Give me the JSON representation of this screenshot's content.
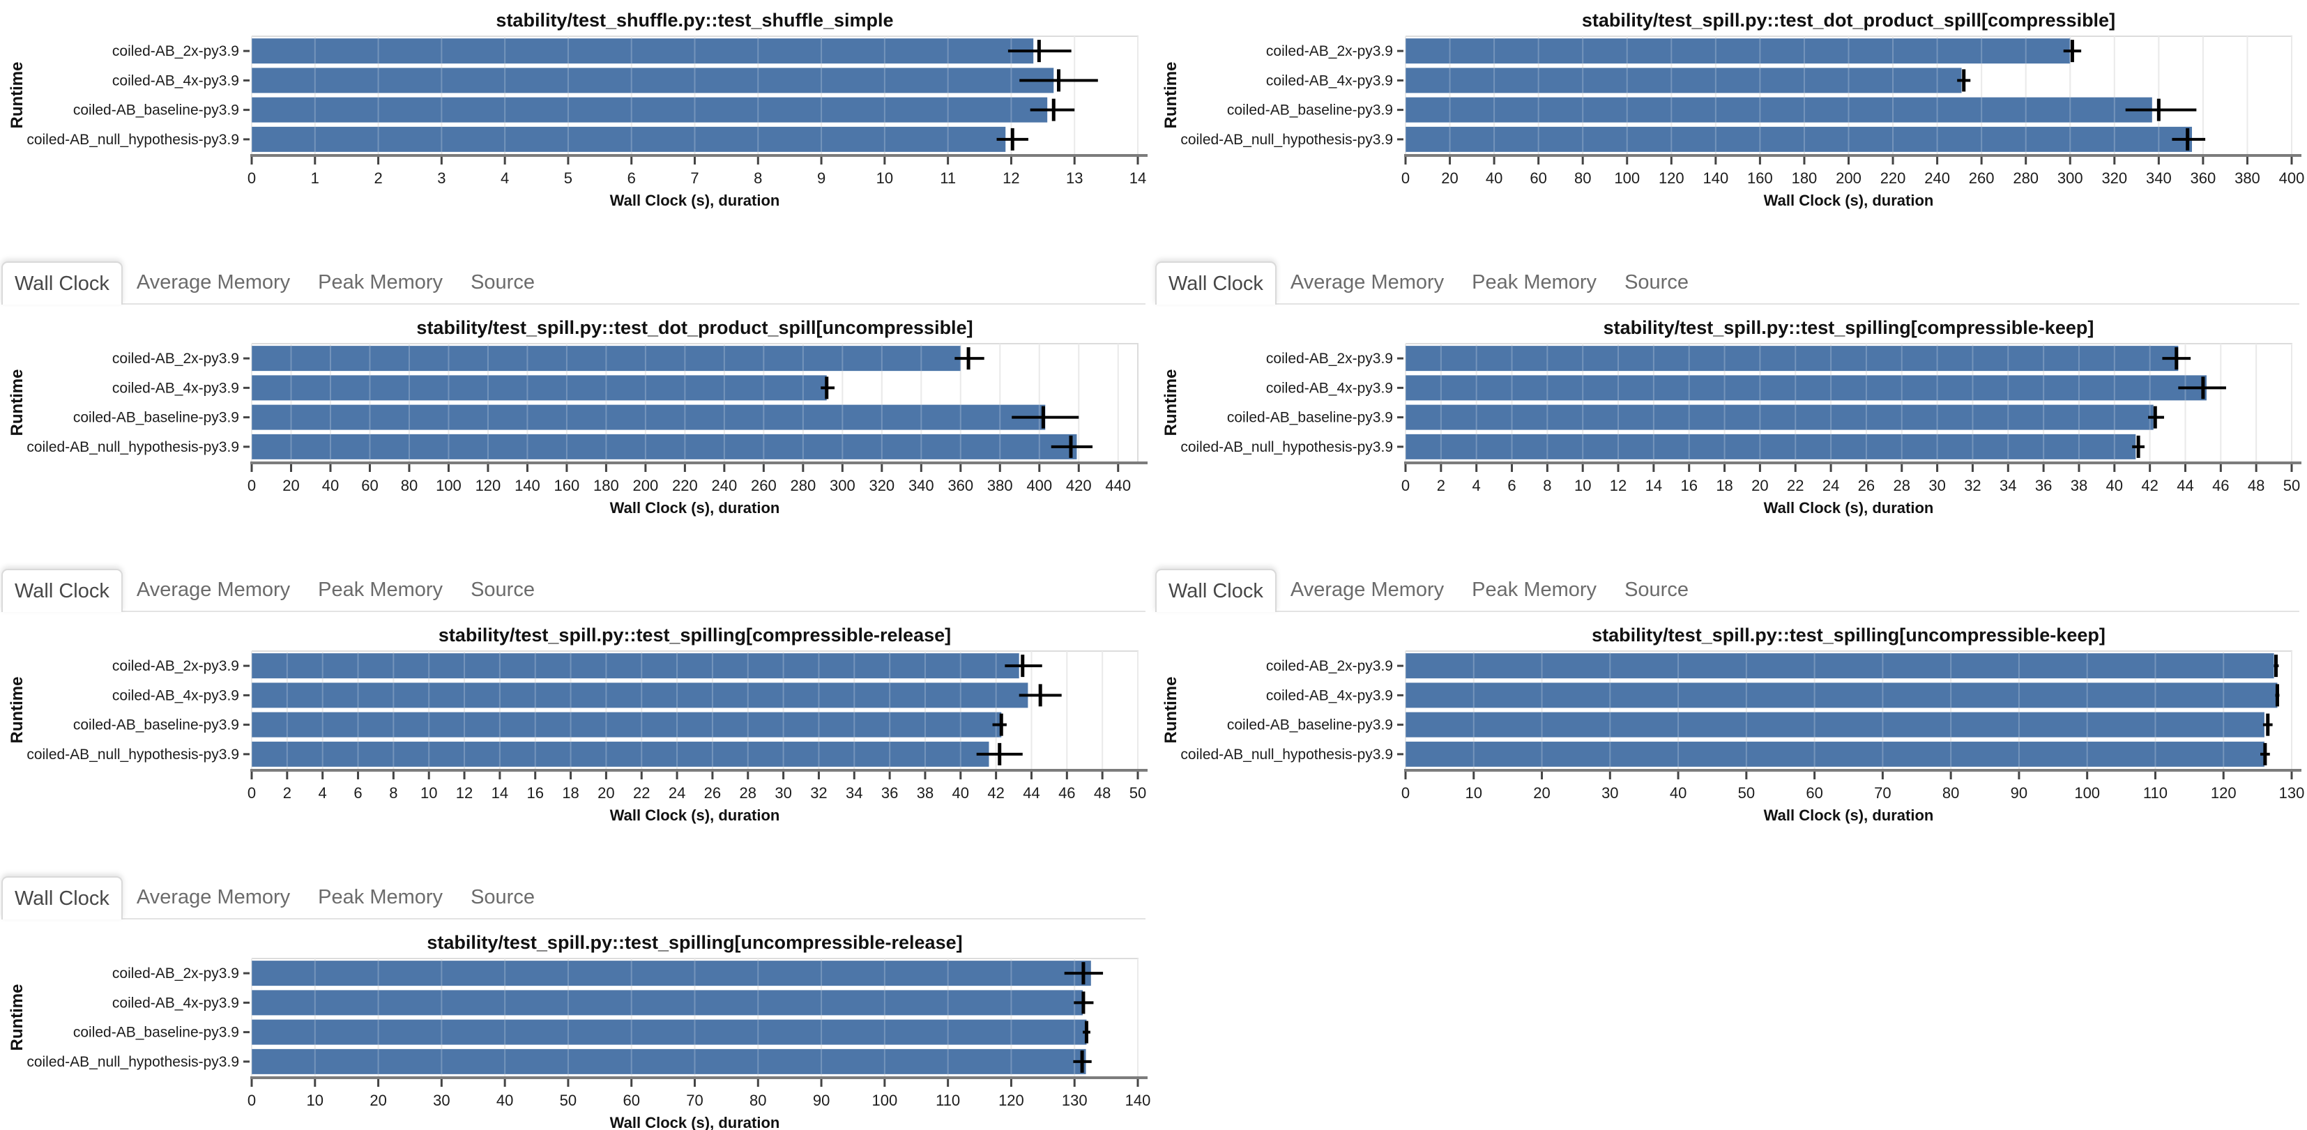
{
  "page": {
    "background": "#ffffff"
  },
  "tab_bar": {
    "tabs": [
      {
        "label": "Wall Clock",
        "active": true
      },
      {
        "label": "Average Memory",
        "active": false
      },
      {
        "label": "Peak Memory",
        "active": false
      },
      {
        "label": "Source",
        "active": false
      }
    ]
  },
  "axis": {
    "x_label": "Wall Clock (s), duration",
    "y_label": "Runtime"
  },
  "runtimes": [
    "coiled-AB_2x-py3.9",
    "coiled-AB_4x-py3.9",
    "coiled-AB_baseline-py3.9",
    "coiled-AB_null_hypothesis-py3.9"
  ],
  "colors": {
    "bar": "#4d76a8",
    "grid": "#e4e4e4",
    "grid_over_bar": "rgba(255,255,255,0.22)",
    "frame": "#dcdcdc",
    "axis_line": "#7c7c7c",
    "tick": "#444444",
    "error_bar": "#000000",
    "title_text": "#111111",
    "tick_text": "#1c1c1c",
    "tab_active_text": "#474747",
    "tab_inactive_text": "#6b6b6b",
    "tab_border": "#d9d9d9"
  },
  "chart_data": [
    {
      "type": "bar",
      "orientation": "horizontal",
      "title": "stability/test_shuffle.py::test_shuffle_simple",
      "categories": [
        "coiled-AB_2x-py3.9",
        "coiled-AB_4x-py3.9",
        "coiled-AB_baseline-py3.9",
        "coiled-AB_null_hypothesis-py3.9"
      ],
      "values": [
        12.35,
        12.67,
        12.57,
        11.91
      ],
      "error_center": [
        12.44,
        12.75,
        12.67,
        12.02
      ],
      "error_low": [
        11.95,
        12.13,
        12.3,
        11.77
      ],
      "error_high": [
        12.95,
        13.37,
        13.0,
        12.27
      ],
      "xlabel": "Wall Clock (s), duration",
      "ylabel": "Runtime",
      "xlim": [
        0,
        14
      ],
      "tick_step": 1,
      "tick_max": 14,
      "grid": true,
      "panel": {
        "row": 0,
        "col": 0,
        "tab_bar": false
      }
    },
    {
      "type": "bar",
      "orientation": "horizontal",
      "title": "stability/test_spill.py::test_dot_product_spill[compressible]",
      "categories": [
        "coiled-AB_2x-py3.9",
        "coiled-AB_4x-py3.9",
        "coiled-AB_baseline-py3.9",
        "coiled-AB_null_hypothesis-py3.9"
      ],
      "values": [
        300,
        251,
        337,
        355
      ],
      "error_center": [
        301,
        252,
        340,
        353
      ],
      "error_low": [
        297,
        249,
        325,
        346
      ],
      "error_high": [
        305,
        255,
        357,
        361
      ],
      "xlabel": "Wall Clock (s), duration",
      "ylabel": "Runtime",
      "xlim": [
        0,
        400
      ],
      "tick_step": 20,
      "tick_max": 400,
      "grid": true,
      "panel": {
        "row": 0,
        "col": 1,
        "tab_bar": false
      }
    },
    {
      "type": "bar",
      "orientation": "horizontal",
      "title": "stability/test_spill.py::test_dot_product_spill[uncompressible]",
      "categories": [
        "coiled-AB_2x-py3.9",
        "coiled-AB_4x-py3.9",
        "coiled-AB_baseline-py3.9",
        "coiled-AB_null_hypothesis-py3.9"
      ],
      "values": [
        360,
        292,
        403,
        419
      ],
      "error_center": [
        364,
        292,
        402,
        416
      ],
      "error_low": [
        357,
        289,
        386,
        406
      ],
      "error_high": [
        372,
        296,
        420,
        427
      ],
      "xlabel": "Wall Clock (s), duration",
      "ylabel": "Runtime",
      "xlim": [
        0,
        450
      ],
      "tick_step": 20,
      "tick_max": 440,
      "grid": true,
      "panel": {
        "row": 1,
        "col": 0,
        "tab_bar": true
      }
    },
    {
      "type": "bar",
      "orientation": "horizontal",
      "title": "stability/test_spill.py::test_spilling[compressible-keep]",
      "categories": [
        "coiled-AB_2x-py3.9",
        "coiled-AB_4x-py3.9",
        "coiled-AB_baseline-py3.9",
        "coiled-AB_null_hypothesis-py3.9"
      ],
      "values": [
        43.6,
        45.2,
        42.2,
        41.2
      ],
      "error_center": [
        43.5,
        45.0,
        42.3,
        41.35
      ],
      "error_low": [
        42.7,
        43.6,
        41.9,
        41.0
      ],
      "error_high": [
        44.3,
        46.3,
        42.8,
        41.7
      ],
      "xlabel": "Wall Clock (s), duration",
      "ylabel": "Runtime",
      "xlim": [
        0,
        50
      ],
      "tick_step": 2,
      "tick_max": 50,
      "grid": true,
      "panel": {
        "row": 1,
        "col": 1,
        "tab_bar": true
      }
    },
    {
      "type": "bar",
      "orientation": "horizontal",
      "title": "stability/test_spill.py::test_spilling[compressible-release]",
      "categories": [
        "coiled-AB_2x-py3.9",
        "coiled-AB_4x-py3.9",
        "coiled-AB_baseline-py3.9",
        "coiled-AB_null_hypothesis-py3.9"
      ],
      "values": [
        43.3,
        43.8,
        42.3,
        41.6
      ],
      "error_center": [
        43.5,
        44.5,
        42.3,
        42.2
      ],
      "error_low": [
        42.5,
        43.3,
        41.8,
        40.9
      ],
      "error_high": [
        44.6,
        45.7,
        42.6,
        43.5
      ],
      "xlabel": "Wall Clock (s), duration",
      "ylabel": "Runtime",
      "xlim": [
        0,
        50
      ],
      "tick_step": 2,
      "tick_max": 50,
      "grid": true,
      "panel": {
        "row": 2,
        "col": 0,
        "tab_bar": true
      }
    },
    {
      "type": "bar",
      "orientation": "horizontal",
      "title": "stability/test_spill.py::test_spilling[uncompressible-keep]",
      "categories": [
        "coiled-AB_2x-py3.9",
        "coiled-AB_4x-py3.9",
        "coiled-AB_baseline-py3.9",
        "coiled-AB_null_hypothesis-py3.9"
      ],
      "values": [
        127.4,
        127.9,
        126.0,
        126.0
      ],
      "error_center": [
        127.7,
        127.9,
        126.5,
        126.1
      ],
      "error_low": [
        127.4,
        127.6,
        125.8,
        125.4
      ],
      "error_high": [
        128.1,
        128.2,
        127.2,
        126.8
      ],
      "xlabel": "Wall Clock (s), duration",
      "ylabel": "Runtime",
      "xlim": [
        0,
        130
      ],
      "tick_step": 10,
      "tick_max": 130,
      "grid": true,
      "panel": {
        "row": 2,
        "col": 1,
        "tab_bar": true
      }
    },
    {
      "type": "bar",
      "orientation": "horizontal",
      "title": "stability/test_spill.py::test_spilling[uncompressible-release]",
      "categories": [
        "coiled-AB_2x-py3.9",
        "coiled-AB_4x-py3.9",
        "coiled-AB_baseline-py3.9",
        "coiled-AB_null_hypothesis-py3.9"
      ],
      "values": [
        132.6,
        131.3,
        131.9,
        131.8
      ],
      "error_center": [
        131.4,
        131.4,
        131.9,
        131.2
      ],
      "error_low": [
        128.4,
        129.9,
        131.3,
        129.8
      ],
      "error_high": [
        134.5,
        133.0,
        132.5,
        132.7
      ],
      "xlabel": "Wall Clock (s), duration",
      "ylabel": "Runtime",
      "xlim": [
        0,
        140
      ],
      "tick_step": 10,
      "tick_max": 140,
      "grid": true,
      "panel": {
        "row": 3,
        "col": 0,
        "tab_bar": true
      }
    }
  ]
}
